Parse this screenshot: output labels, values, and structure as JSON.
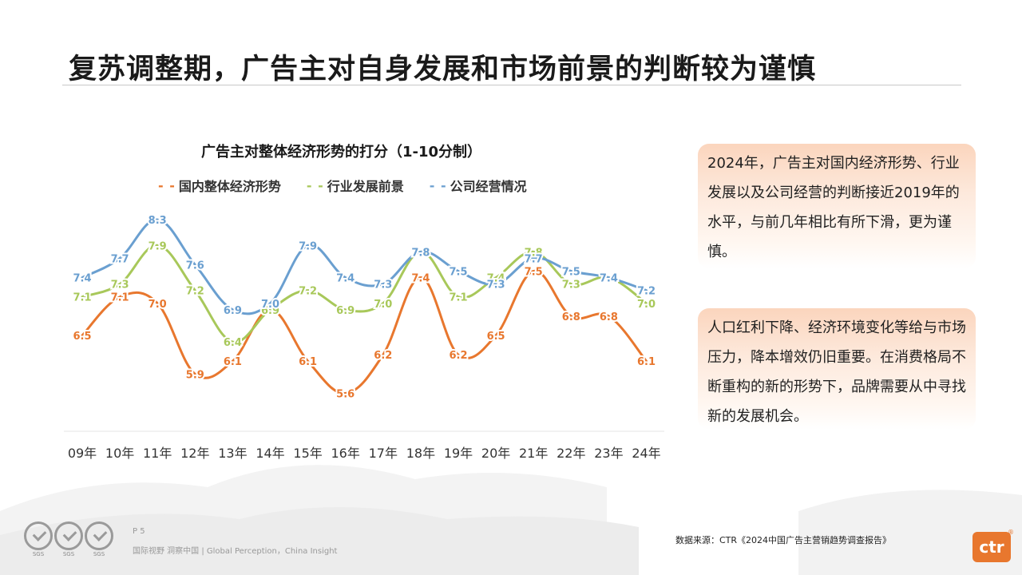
{
  "title": "复苏调整期，广告主对自身发展和市场前景的判断较为谨慎",
  "chart_data": {
    "type": "line",
    "title": "广告主对整体经济形势的打分（1-10分制）",
    "categories": [
      "09年",
      "10年",
      "11年",
      "12年",
      "13年",
      "14年",
      "15年",
      "16年",
      "17年",
      "18年",
      "19年",
      "20年",
      "21年",
      "22年",
      "23年",
      "24年"
    ],
    "series": [
      {
        "name": "国内整体经济形势",
        "color": "#e8772e",
        "values": [
          6.5,
          7.1,
          7.0,
          5.9,
          6.1,
          6.9,
          6.1,
          5.6,
          6.2,
          7.4,
          6.2,
          6.5,
          7.5,
          6.8,
          6.8,
          6.1
        ]
      },
      {
        "name": "行业发展前景",
        "color": "#a8c85a",
        "values": [
          7.1,
          7.3,
          7.9,
          7.2,
          6.4,
          6.9,
          7.2,
          6.9,
          7.0,
          7.8,
          7.1,
          7.4,
          7.8,
          7.3,
          7.4,
          7.0
        ]
      },
      {
        "name": "公司经营情况",
        "color": "#6a9fd0",
        "values": [
          7.4,
          7.7,
          8.3,
          7.6,
          6.9,
          7.0,
          7.9,
          7.4,
          7.3,
          7.8,
          7.5,
          7.3,
          7.7,
          7.5,
          7.4,
          7.2
        ]
      }
    ],
    "legend_marker": "- -",
    "xlabel": "",
    "ylabel": "",
    "grid": false,
    "legend_position": "top"
  },
  "box1": {
    "text": "2024年，广告主对国内经济形势、行业发展以及公司经营的判断接近2019年的水平，与前几年相比有所下滑，更为谨慎。"
  },
  "box2": {
    "text": "人口红利下降、经济环境变化等给与市场压力，降本增效仍旧重要。在消费格局不断重构的新的形势下，品牌需要从中寻找新的发展机会。"
  },
  "footer": {
    "page": "P 5",
    "slogan": "国际视野 洞察中国 | Global Perception，China Insight",
    "source": "数据来源：CTR《2024中国广告主营销趋势调查报告》",
    "badge_label": "SGS",
    "logo": "ctr",
    "logo_mark": "®"
  }
}
